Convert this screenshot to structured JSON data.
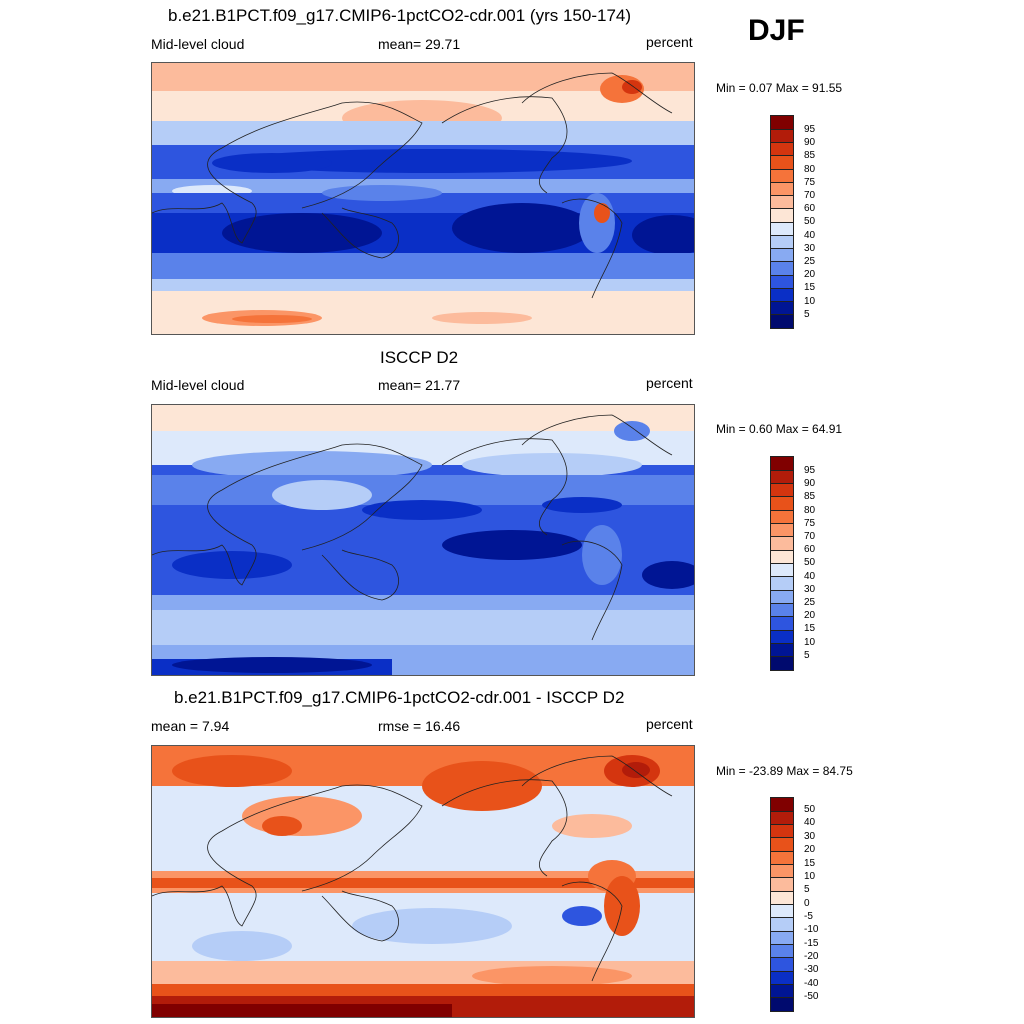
{
  "season": "DJF",
  "panels": [
    {
      "id": "model",
      "title": "b.e21.B1PCT.f09_g17.CMIP6-1pctCO2-cdr.001 (yrs 150-174)",
      "left_label": "Mid-level cloud",
      "center_label": "mean=  29.71",
      "right_label": "percent",
      "minmax": "Min =   0.07 Max =  91.55",
      "colorbar_labels": [
        "95",
        "90",
        "85",
        "80",
        "75",
        "70",
        "60",
        "50",
        "40",
        "30",
        "25",
        "20",
        "15",
        "10",
        "5"
      ]
    },
    {
      "id": "obs",
      "title": "ISCCP D2",
      "left_label": "Mid-level cloud",
      "center_label": "mean=  21.77",
      "right_label": "percent",
      "minmax": "Min =   0.60 Max =  64.91",
      "colorbar_labels": [
        "95",
        "90",
        "85",
        "80",
        "75",
        "70",
        "60",
        "50",
        "40",
        "30",
        "25",
        "20",
        "15",
        "10",
        "5"
      ]
    },
    {
      "id": "diff",
      "title": "b.e21.B1PCT.f09_g17.CMIP6-1pctCO2-cdr.001 - ISCCP D2",
      "left_label": "mean =   7.94",
      "center_label": "rmse =  16.46",
      "right_label": "percent",
      "minmax": "Min = -23.89 Max =  84.75",
      "colorbar_labels": [
        "50",
        "40",
        "30",
        "20",
        "15",
        "10",
        "5",
        "0",
        "-5",
        "-10",
        "-15",
        "-20",
        "-30",
        "-40",
        "-50"
      ]
    }
  ],
  "palette": [
    "#800000",
    "#b21c0a",
    "#d4350f",
    "#e8521a",
    "#f5733a",
    "#fb9566",
    "#fcbb9c",
    "#fde6d6",
    "#dde9fb",
    "#b5cdf7",
    "#88aaf2",
    "#5a82ea",
    "#2e55df",
    "#0a2fc6",
    "#001594",
    "#000a6e"
  ]
}
